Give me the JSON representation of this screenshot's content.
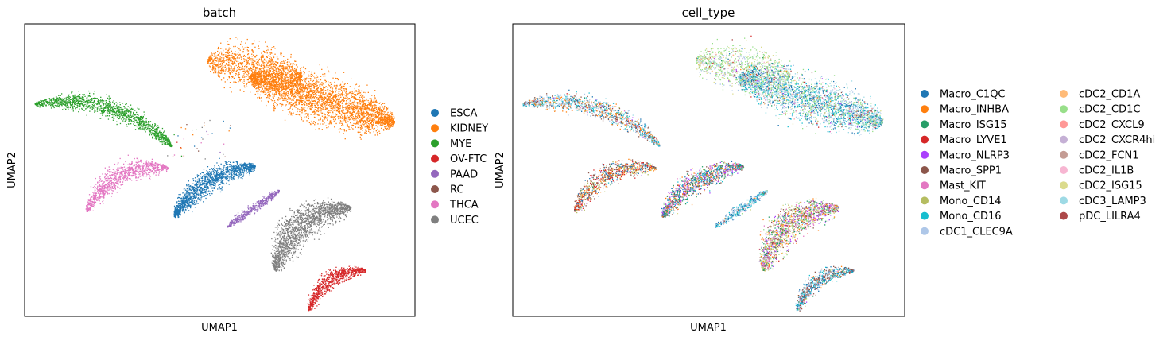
{
  "chart_data": [
    {
      "type": "scatter",
      "title": "batch",
      "xlabel": "UMAP1",
      "ylabel": "UMAP2",
      "grid": false,
      "legend_placement": "right",
      "series": [
        {
          "name": "ESCA",
          "color": "#1f77b4"
        },
        {
          "name": "KIDNEY",
          "color": "#ff7f0e"
        },
        {
          "name": "MYE",
          "color": "#2ca02c"
        },
        {
          "name": "OV-FTC",
          "color": "#d62728"
        },
        {
          "name": "PAAD",
          "color": "#9467bd"
        },
        {
          "name": "RC",
          "color": "#8c564b"
        },
        {
          "name": "THCA",
          "color": "#e377c2"
        },
        {
          "name": "UCEC",
          "color": "#7f7f7f"
        }
      ]
    },
    {
      "type": "scatter",
      "title": "cell_type",
      "xlabel": "UMAP1",
      "ylabel": "UMAP2",
      "grid": false,
      "legend_placement": "right",
      "series": [
        {
          "name": "Macro_C1QC",
          "color": "#1f77b4"
        },
        {
          "name": "Macro_INHBA",
          "color": "#ff7f0e"
        },
        {
          "name": "Macro_ISG15",
          "color": "#279e68"
        },
        {
          "name": "Macro_LYVE1",
          "color": "#d62728"
        },
        {
          "name": "Macro_NLRP3",
          "color": "#aa40fc"
        },
        {
          "name": "Macro_SPP1",
          "color": "#8c564b"
        },
        {
          "name": "Mast_KIT",
          "color": "#e377c2"
        },
        {
          "name": "Mono_CD14",
          "color": "#b5bd61"
        },
        {
          "name": "Mono_CD16",
          "color": "#17becf"
        },
        {
          "name": "cDC1_CLEC9A",
          "color": "#aec7e8"
        },
        {
          "name": "cDC2_CD1A",
          "color": "#ffbb78"
        },
        {
          "name": "cDC2_CD1C",
          "color": "#98df8a"
        },
        {
          "name": "cDC2_CXCL9",
          "color": "#ff9896"
        },
        {
          "name": "cDC2_CXCR4hi",
          "color": "#c5b0d5"
        },
        {
          "name": "cDC2_FCN1",
          "color": "#c49c94"
        },
        {
          "name": "cDC2_IL1B",
          "color": "#f7b6d2"
        },
        {
          "name": "cDC2_ISG15",
          "color": "#dbdb8d"
        },
        {
          "name": "cDC3_LAMP3",
          "color": "#9edae5"
        },
        {
          "name": "pDC_LILRA4",
          "color": "#ad494a"
        }
      ]
    }
  ]
}
